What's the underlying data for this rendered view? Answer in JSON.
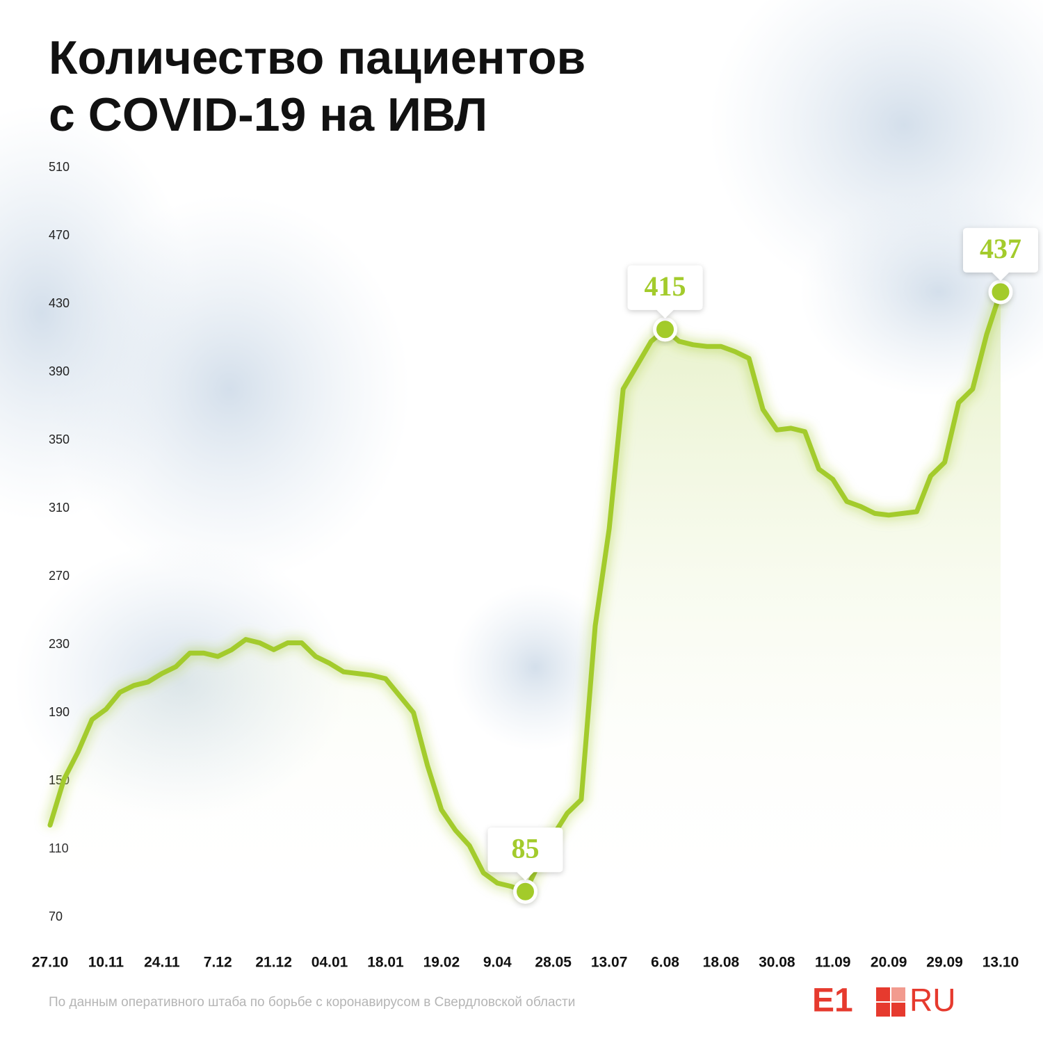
{
  "chart_data": {
    "type": "line",
    "title": [
      "Количество пациентов",
      "с COVID-19 на ИВЛ"
    ],
    "source": "По данным оперативного штаба по борьбе с коронавирусом в Свердловской области",
    "logo": [
      "E1",
      "RU"
    ],
    "categories": [
      "27.10",
      null,
      null,
      null,
      "10.11",
      null,
      null,
      null,
      "24.11",
      null,
      null,
      null,
      "7.12",
      null,
      null,
      null,
      "21.12",
      null,
      null,
      null,
      "04.01",
      null,
      null,
      null,
      "18.01",
      null,
      null,
      null,
      "19.02",
      null,
      null,
      null,
      "9.04",
      null,
      null,
      null,
      "28.05",
      null,
      null,
      null,
      "13.07",
      null,
      null,
      null,
      "6.08",
      null,
      null,
      null,
      "18.08",
      null,
      null,
      null,
      "30.08",
      null,
      null,
      null,
      "11.09",
      null,
      null,
      null,
      "20.09",
      null,
      null,
      null,
      "29.09",
      null,
      null,
      null,
      "13.10"
    ],
    "series": [
      {
        "name": "ИВЛ",
        "color": "#a3cb2c",
        "values": [
          124,
          151,
          167,
          186,
          192,
          202,
          206,
          208,
          213,
          217,
          225,
          225,
          223,
          227,
          233,
          231,
          227,
          231,
          231,
          223,
          219,
          214,
          213,
          212,
          210,
          200,
          190,
          159,
          133,
          121,
          112,
          96,
          90,
          88,
          85,
          102,
          118,
          131,
          139,
          241,
          298,
          380,
          394,
          408,
          415,
          408,
          406,
          405,
          405,
          402,
          398,
          368,
          356,
          357,
          355,
          333,
          327,
          314,
          311,
          307,
          306,
          307,
          308,
          329,
          337,
          372,
          380,
          412,
          437
        ]
      }
    ],
    "ylim": [
      70,
      510
    ],
    "yticks": [
      70,
      110,
      150,
      190,
      230,
      270,
      310,
      350,
      390,
      430,
      470,
      510
    ],
    "grid": false
  }
}
